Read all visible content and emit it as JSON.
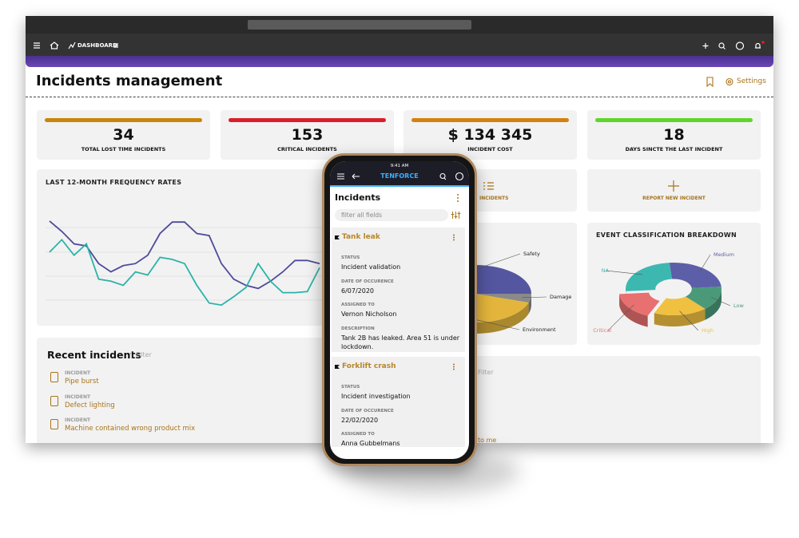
{
  "nav": {
    "dashboard": "DASHBOARD"
  },
  "header": {
    "title": "Incidents management",
    "settings": "Settings"
  },
  "kpis": [
    {
      "value": 34,
      "label": "TOTAL LOST TIME INCIDENTS",
      "color": "#c8860a"
    },
    {
      "value": 153,
      "label": "CRITICAL INCIDENTS",
      "color": "#d91f2a"
    },
    {
      "value": "$ 134 345",
      "label": "INCIDENT COST",
      "color": "#d4820f"
    },
    {
      "value": 18,
      "label": "DAYS SINCTE THE LAST INCIDENT",
      "color": "#5fd629"
    }
  ],
  "tiles": {
    "incidents": "INCIDENTS",
    "report": "REPORT NEW INCIDENT"
  },
  "chart_data": [
    {
      "type": "line",
      "title": "LAST 12-MONTH FREQUENCY RATES",
      "ylim": [
        0,
        100
      ],
      "series": [
        {
          "color": "#4d4b9a",
          "values": [
            87,
            77,
            65,
            63,
            46,
            38,
            44,
            46,
            54,
            75,
            86,
            86,
            75,
            73,
            46,
            31,
            25,
            22,
            29,
            38,
            49,
            49,
            46
          ]
        },
        {
          "color": "#2bb3a8",
          "values": [
            57,
            69,
            54,
            65,
            31,
            29,
            25,
            38,
            35,
            52,
            50,
            46,
            25,
            8,
            6,
            14,
            23,
            46,
            29,
            18,
            18,
            19,
            42
          ]
        }
      ]
    },
    {
      "type": "pie",
      "categories": [
        "Safety",
        "Damage",
        "Environment"
      ],
      "values": [
        50,
        5,
        45
      ],
      "colors": [
        "#5456a0",
        "#8a8a8a",
        "#e3b53c"
      ]
    },
    {
      "type": "donut",
      "title": "EVENT CLASSIFICATION BREAKDOWN",
      "categories": [
        "Medium",
        "Low",
        "High",
        "Critical",
        "NA"
      ],
      "values": [
        25,
        15,
        18,
        17,
        25
      ],
      "colors": [
        "#5c5fa8",
        "#4a9a7a",
        "#f0c040",
        "#e87070",
        "#3cb8b0"
      ]
    }
  ],
  "recent": {
    "title": "Recent incidents",
    "filter": "Filter",
    "items": [
      {
        "label": "INCIDENT",
        "name": "Pipe burst"
      },
      {
        "label": "INCIDENT",
        "name": "Defect lighting"
      },
      {
        "label": "INCIDENT",
        "name": "Machine contained wrong product mix"
      }
    ]
  },
  "assigned_panel": {
    "filter": "Filter",
    "footer": "to me"
  },
  "phone": {
    "time": "9:41 AM",
    "brand": "TENFORCE",
    "title": "Incidents",
    "search": "filter all fields",
    "cards": [
      {
        "title": "Tank leak",
        "fields": [
          {
            "label": "STATUS",
            "value": "Incident validation"
          },
          {
            "label": "DATE OF OCCURENCE",
            "value": "6/07/2020"
          },
          {
            "label": "ASSIGNED TO",
            "value": "Vernon Nicholson"
          },
          {
            "label": "DESCRIPTION",
            "value": "Tank 2B has leaked. Area 51 is under lockdown."
          }
        ]
      },
      {
        "title": "Forklift crash",
        "fields": [
          {
            "label": "STATUS",
            "value": "Incident investigation"
          },
          {
            "label": "DATE OF OCCURENCE",
            "value": "22/02/2020"
          },
          {
            "label": "ASSIGNED TO",
            "value": "Anna Gubbelmans"
          }
        ]
      }
    ]
  }
}
